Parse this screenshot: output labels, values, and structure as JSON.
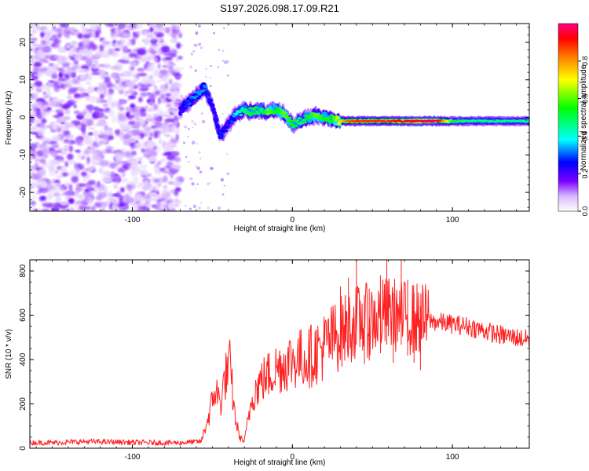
{
  "title": "S197.2026.098.17.09.R21",
  "chart_data": [
    {
      "type": "heatmap",
      "title": "S197.2026.098.17.09.R21",
      "xlabel": "Height of straight line (km)",
      "ylabel": "Frequency (Hz)",
      "xlim": [
        -164,
        148
      ],
      "ylim": [
        -25,
        25
      ],
      "xticks": [
        -100,
        0,
        100
      ],
      "yticks": [
        20,
        10,
        0,
        -10,
        -20
      ],
      "grid": false,
      "colorbar": {
        "label": "Normalized spectral amplitude",
        "range": [
          0,
          1
        ],
        "ticks": [
          0.0,
          0.2,
          0.4,
          0.6,
          0.8
        ],
        "tick_labels": [
          "0.0",
          "0.2",
          "0.4",
          "0.6",
          "0.8"
        ],
        "colormap": [
          "#ffffff",
          "#b57cff",
          "#6a00ff",
          "#0000ff",
          "#00ffff",
          "#00ff00",
          "#ffff00",
          "#ff8000",
          "#ff0000",
          "#ff0080"
        ]
      },
      "noise_region_x": [
        -164,
        -70
      ],
      "trace": {
        "x": [
          -70,
          -62,
          -55,
          -50,
          -45,
          -40,
          -35,
          -30,
          -25,
          -20,
          -15,
          -10,
          -5,
          0,
          5,
          10,
          15,
          20,
          25,
          30,
          35,
          40,
          50,
          60,
          70,
          80,
          90,
          100,
          110,
          120,
          130,
          140,
          148
        ],
        "y": [
          2,
          5,
          8,
          3,
          -5,
          -2,
          1,
          2,
          1.5,
          2,
          1.5,
          2,
          1,
          -2,
          -1,
          0,
          0.5,
          0,
          -0.5,
          -1,
          -1,
          -1,
          -1,
          -1,
          -1,
          -1,
          -1,
          -1,
          -1,
          -1,
          -1,
          -1,
          -1
        ],
        "amplitude": [
          0.3,
          0.4,
          0.4,
          0.3,
          0.35,
          0.3,
          0.45,
          0.5,
          0.55,
          0.5,
          0.6,
          0.55,
          0.6,
          0.55,
          0.5,
          0.55,
          0.6,
          0.55,
          0.55,
          0.7,
          0.8,
          0.85,
          0.85,
          0.85,
          0.9,
          0.95,
          0.95,
          0.55,
          0.5,
          0.5,
          0.5,
          0.5,
          0.5
        ]
      }
    },
    {
      "type": "line",
      "xlabel": "Height of straight line (km)",
      "ylabel": "SNR (10 * v/v)",
      "xlim": [
        -164,
        148
      ],
      "ylim": [
        0,
        850
      ],
      "xticks": [
        -100,
        0,
        100
      ],
      "yticks": [
        0,
        200,
        400,
        600,
        800
      ],
      "grid": false,
      "series": [
        {
          "name": "SNR",
          "color": "#ff2020",
          "x": [
            -164,
            -150,
            -130,
            -110,
            -90,
            -70,
            -57,
            -52,
            -48,
            -45,
            -42,
            -39,
            -36,
            -33,
            -30,
            -25,
            -20,
            -15,
            -10,
            -5,
            0,
            10,
            20,
            30,
            40,
            50,
            60,
            70,
            80,
            90,
            100,
            110,
            120,
            130,
            140,
            148
          ],
          "y": [
            25,
            25,
            30,
            28,
            25,
            25,
            30,
            150,
            270,
            200,
            320,
            370,
            150,
            50,
            30,
            240,
            300,
            330,
            360,
            380,
            400,
            410,
            460,
            520,
            570,
            580,
            610,
            590,
            580,
            570,
            560,
            550,
            530,
            510,
            500,
            490
          ],
          "spikes": [
            {
              "x": 30,
              "y": 730
            },
            {
              "x": 35,
              "y": 770
            },
            {
              "x": 40,
              "y": 850
            },
            {
              "x": 45,
              "y": 690
            },
            {
              "x": 48,
              "y": 720
            },
            {
              "x": 55,
              "y": 780
            },
            {
              "x": 59,
              "y": 850
            },
            {
              "x": 63,
              "y": 700
            },
            {
              "x": 68,
              "y": 850
            },
            {
              "x": 72,
              "y": 760
            },
            {
              "x": 76,
              "y": 700
            },
            {
              "x": 80,
              "y": 640
            }
          ]
        }
      ]
    }
  ]
}
